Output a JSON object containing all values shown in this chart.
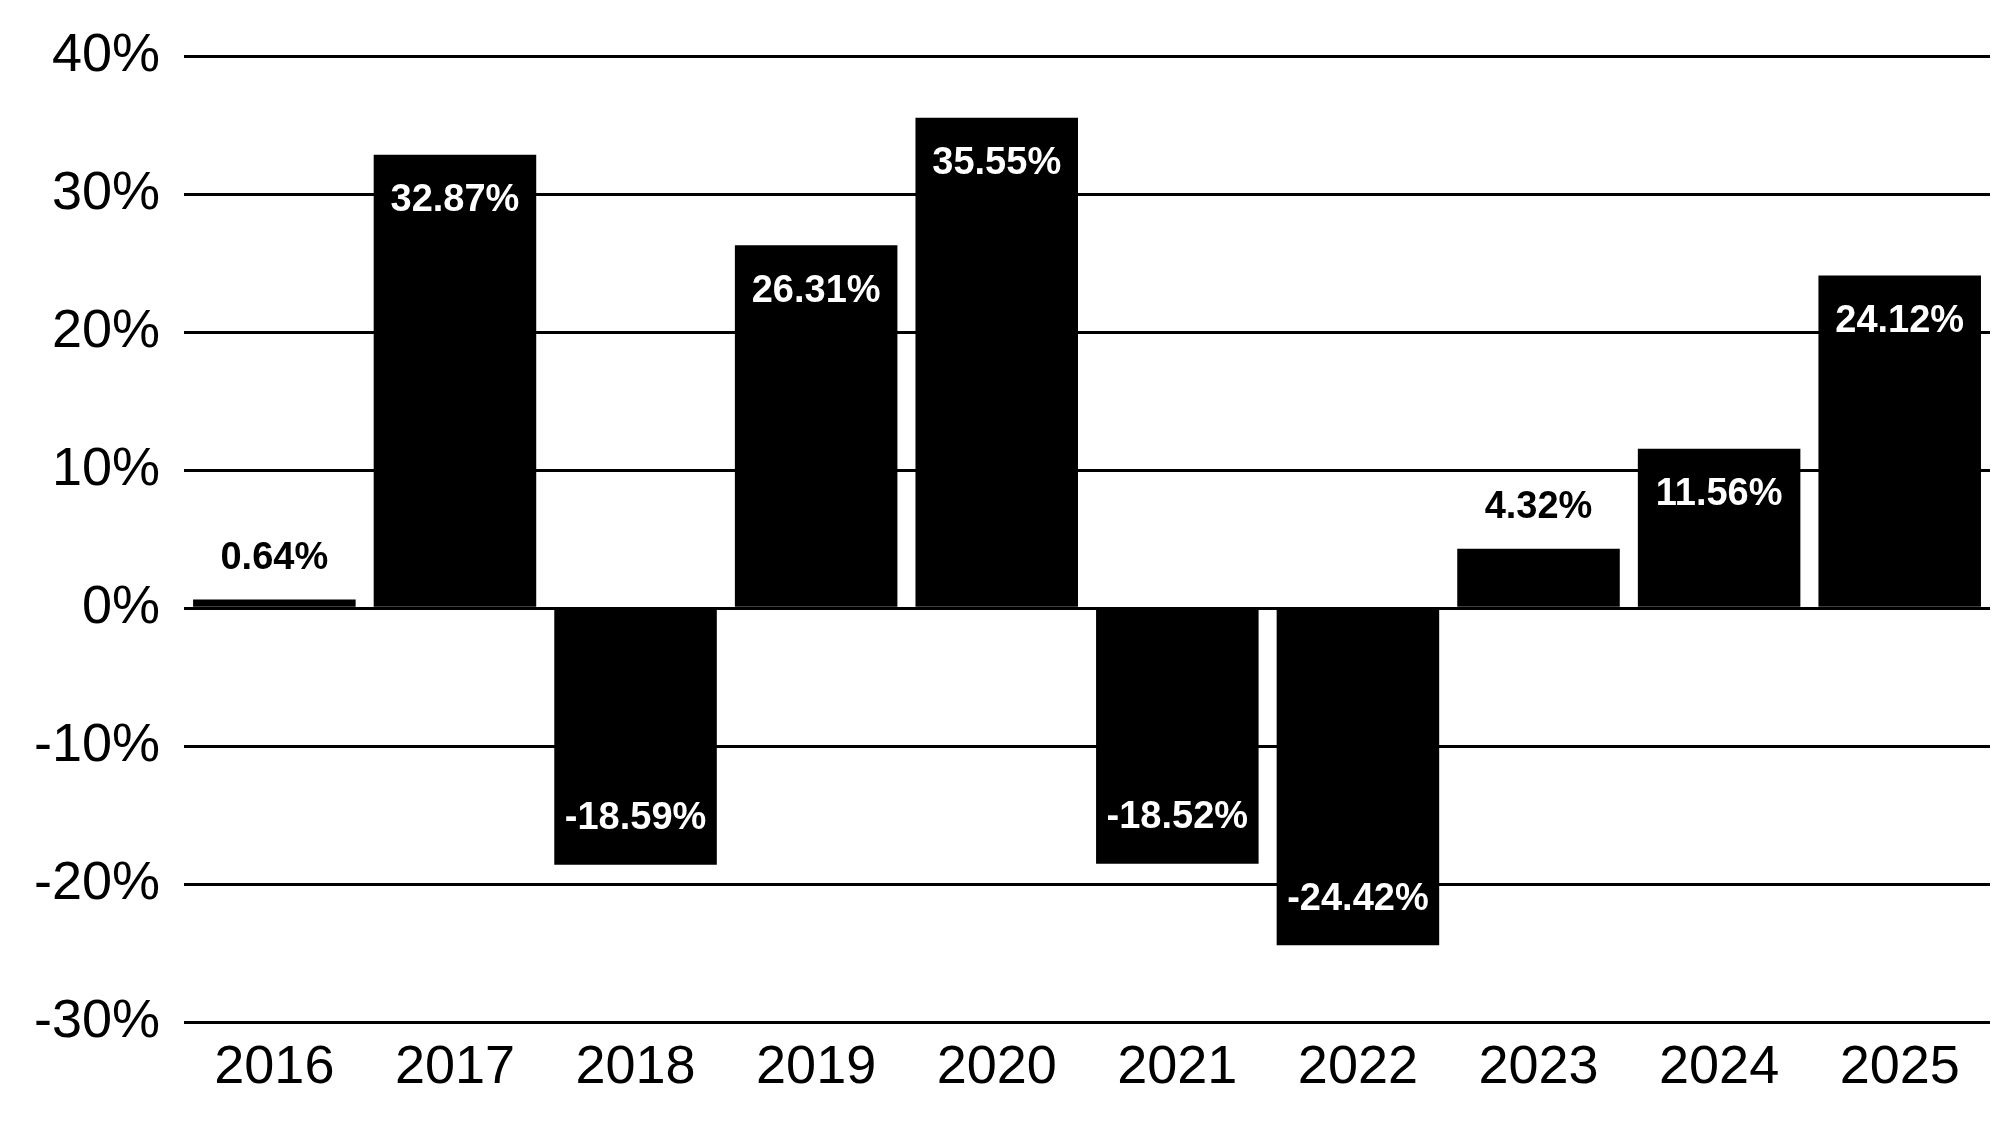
{
  "chart_data": {
    "type": "bar",
    "categories": [
      "2016",
      "2017",
      "2018",
      "2019",
      "2020",
      "2021",
      "2022",
      "2023",
      "2024",
      "2025"
    ],
    "values": [
      0.64,
      32.87,
      -18.59,
      26.31,
      35.55,
      -18.52,
      -24.42,
      4.32,
      11.56,
      24.12
    ],
    "value_labels": [
      "0.64%",
      "32.87%",
      "-18.59%",
      "26.31%",
      "35.55%",
      "-18.52%",
      "-24.42%",
      "4.32%",
      "11.56%",
      "24.12%"
    ],
    "color": "#000000",
    "ylim": [
      -30,
      40
    ],
    "yticks": [
      {
        "value": -30,
        "label": "-30%"
      },
      {
        "value": -20,
        "label": "-20%"
      },
      {
        "value": -10,
        "label": "-10%"
      },
      {
        "value": 0,
        "label": "0%"
      },
      {
        "value": 10,
        "label": "10%"
      },
      {
        "value": 20,
        "label": "20%"
      },
      {
        "value": 30,
        "label": "30%"
      },
      {
        "value": 40,
        "label": "40%"
      }
    ],
    "grid": "y"
  }
}
